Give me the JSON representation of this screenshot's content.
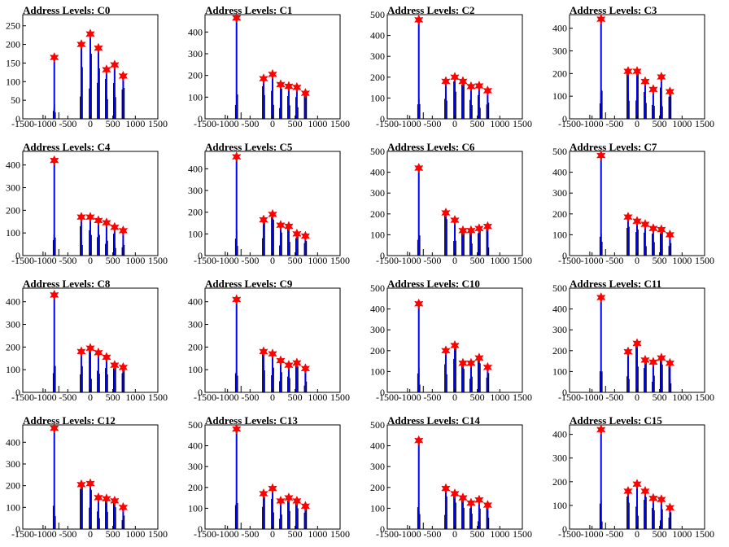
{
  "colors": {
    "frame": "#000000",
    "histogram_black": "#000000",
    "histogram_blue": "#0000ff",
    "marker": "#ff0000"
  },
  "marker_icon": "red-star-icon",
  "chart_data": [
    {
      "type": "bar",
      "title_prefix": "Address Levels:",
      "channel": "C0",
      "xlim": [
        -1500,
        1500
      ],
      "ylim": [
        0,
        280
      ],
      "xticks": [
        -1500,
        -1000,
        -500,
        0,
        500,
        1000,
        1500
      ],
      "yticks": [
        0,
        50,
        100,
        150,
        200,
        250
      ],
      "peaks_x": [
        -800,
        -200,
        0,
        180,
        360,
        540,
        730
      ],
      "peaks_y": [
        165,
        200,
        228,
        190,
        132,
        145,
        115
      ]
    },
    {
      "type": "bar",
      "title_prefix": "Address Levels:",
      "channel": "C1",
      "xlim": [
        -1500,
        1500
      ],
      "ylim": [
        0,
        480
      ],
      "xticks": [
        -1500,
        -1000,
        -500,
        0,
        500,
        1000,
        1500
      ],
      "yticks": [
        0,
        100,
        200,
        300,
        400
      ],
      "peaks_x": [
        -800,
        -200,
        0,
        180,
        360,
        540,
        730
      ],
      "peaks_y": [
        465,
        185,
        205,
        158,
        150,
        145,
        118
      ]
    },
    {
      "type": "bar",
      "title_prefix": "Address Levels:",
      "channel": "C2",
      "xlim": [
        -1500,
        1500
      ],
      "ylim": [
        0,
        500
      ],
      "xticks": [
        -1500,
        -1000,
        -500,
        0,
        500,
        1000,
        1500
      ],
      "yticks": [
        0,
        100,
        200,
        300,
        400,
        500
      ],
      "peaks_x": [
        -800,
        -200,
        0,
        180,
        360,
        540,
        730
      ],
      "peaks_y": [
        475,
        180,
        200,
        180,
        155,
        158,
        135
      ]
    },
    {
      "type": "bar",
      "title_prefix": "Address Levels:",
      "channel": "C3",
      "xlim": [
        -1500,
        1500
      ],
      "ylim": [
        0,
        460
      ],
      "xticks": [
        -1500,
        -1000,
        -500,
        0,
        500,
        1000,
        1500
      ],
      "yticks": [
        0,
        100,
        200,
        300,
        400
      ],
      "peaks_x": [
        -800,
        -200,
        0,
        180,
        360,
        540,
        730
      ],
      "peaks_y": [
        440,
        210,
        210,
        165,
        130,
        185,
        120
      ]
    },
    {
      "type": "bar",
      "title_prefix": "Address Levels:",
      "channel": "C4",
      "xlim": [
        -1500,
        1500
      ],
      "ylim": [
        0,
        460
      ],
      "xticks": [
        -1500,
        -1000,
        -500,
        0,
        500,
        1000,
        1500
      ],
      "yticks": [
        0,
        100,
        200,
        300,
        400
      ],
      "peaks_x": [
        -800,
        -200,
        0,
        180,
        360,
        540,
        730
      ],
      "peaks_y": [
        420,
        170,
        170,
        155,
        145,
        125,
        110
      ]
    },
    {
      "type": "bar",
      "title_prefix": "Address Levels:",
      "channel": "C5",
      "xlim": [
        -1500,
        1500
      ],
      "ylim": [
        0,
        480
      ],
      "xticks": [
        -1500,
        -1000,
        -500,
        0,
        500,
        1000,
        1500
      ],
      "yticks": [
        0,
        100,
        200,
        300,
        400
      ],
      "peaks_x": [
        -800,
        -200,
        0,
        180,
        360,
        540,
        730
      ],
      "peaks_y": [
        455,
        165,
        190,
        140,
        135,
        100,
        90
      ]
    },
    {
      "type": "bar",
      "title_prefix": "Address Levels:",
      "channel": "C6",
      "xlim": [
        -1500,
        1500
      ],
      "ylim": [
        0,
        500
      ],
      "xticks": [
        -1500,
        -1000,
        -500,
        0,
        500,
        1000,
        1500
      ],
      "yticks": [
        0,
        100,
        200,
        300,
        400,
        500
      ],
      "peaks_x": [
        -800,
        -200,
        0,
        180,
        360,
        540,
        730
      ],
      "peaks_y": [
        420,
        205,
        170,
        120,
        120,
        130,
        140
      ]
    },
    {
      "type": "bar",
      "title_prefix": "Address Levels:",
      "channel": "C7",
      "xlim": [
        -1500,
        1500
      ],
      "ylim": [
        0,
        500
      ],
      "xticks": [
        -1500,
        -1000,
        -500,
        0,
        500,
        1000,
        1500
      ],
      "yticks": [
        0,
        100,
        200,
        300,
        400,
        500
      ],
      "peaks_x": [
        -800,
        -200,
        0,
        180,
        360,
        540,
        730
      ],
      "peaks_y": [
        480,
        185,
        165,
        150,
        130,
        125,
        100
      ]
    },
    {
      "type": "bar",
      "title_prefix": "Address Levels:",
      "channel": "C8",
      "xlim": [
        -1500,
        1500
      ],
      "ylim": [
        0,
        460
      ],
      "xticks": [
        -1500,
        -1000,
        -500,
        0,
        500,
        1000,
        1500
      ],
      "yticks": [
        0,
        100,
        200,
        300,
        400
      ],
      "peaks_x": [
        -800,
        -200,
        0,
        180,
        360,
        540,
        730
      ],
      "peaks_y": [
        430,
        180,
        195,
        175,
        155,
        120,
        110
      ]
    },
    {
      "type": "bar",
      "title_prefix": "Address Levels:",
      "channel": "C9",
      "xlim": [
        -1500,
        1500
      ],
      "ylim": [
        0,
        460
      ],
      "xticks": [
        -1500,
        -1000,
        -500,
        0,
        500,
        1000,
        1500
      ],
      "yticks": [
        0,
        100,
        200,
        300,
        400
      ],
      "peaks_x": [
        -800,
        -200,
        0,
        180,
        360,
        540,
        730
      ],
      "peaks_y": [
        410,
        180,
        170,
        140,
        120,
        130,
        105
      ]
    },
    {
      "type": "bar",
      "title_prefix": "Address Levels:",
      "channel": "C10",
      "xlim": [
        -1500,
        1500
      ],
      "ylim": [
        0,
        500
      ],
      "xticks": [
        -1500,
        -1000,
        -500,
        0,
        500,
        1000,
        1500
      ],
      "yticks": [
        0,
        100,
        200,
        300,
        400,
        500
      ],
      "peaks_x": [
        -800,
        -200,
        0,
        180,
        360,
        540,
        730
      ],
      "peaks_y": [
        425,
        200,
        225,
        140,
        140,
        165,
        120
      ]
    },
    {
      "type": "bar",
      "title_prefix": "Address Levels:",
      "channel": "C11",
      "xlim": [
        -1500,
        1500
      ],
      "ylim": [
        0,
        500
      ],
      "xticks": [
        -1500,
        -1000,
        -500,
        0,
        500,
        1000,
        1500
      ],
      "yticks": [
        0,
        100,
        200,
        300,
        400,
        500
      ],
      "peaks_x": [
        -800,
        -200,
        0,
        180,
        360,
        540,
        730
      ],
      "peaks_y": [
        455,
        195,
        235,
        155,
        145,
        165,
        140
      ]
    },
    {
      "type": "bar",
      "title_prefix": "Address Levels:",
      "channel": "C12",
      "xlim": [
        -1500,
        1500
      ],
      "ylim": [
        0,
        480
      ],
      "xticks": [
        -1500,
        -1000,
        -500,
        0,
        500,
        1000,
        1500
      ],
      "yticks": [
        0,
        100,
        200,
        300,
        400
      ],
      "peaks_x": [
        -800,
        -200,
        0,
        180,
        360,
        540,
        730
      ],
      "peaks_y": [
        465,
        205,
        210,
        145,
        140,
        130,
        100
      ]
    },
    {
      "type": "bar",
      "title_prefix": "Address Levels:",
      "channel": "C13",
      "xlim": [
        -1500,
        1500
      ],
      "ylim": [
        0,
        500
      ],
      "xticks": [
        -1500,
        -1000,
        -500,
        0,
        500,
        1000,
        1500
      ],
      "yticks": [
        0,
        100,
        200,
        300,
        400,
        500
      ],
      "peaks_x": [
        -800,
        -200,
        0,
        180,
        360,
        540,
        730
      ],
      "peaks_y": [
        480,
        170,
        195,
        135,
        150,
        135,
        110
      ]
    },
    {
      "type": "bar",
      "title_prefix": "Address Levels:",
      "channel": "C14",
      "xlim": [
        -1500,
        1500
      ],
      "ylim": [
        0,
        500
      ],
      "xticks": [
        -1500,
        -1000,
        -500,
        0,
        500,
        1000,
        1500
      ],
      "yticks": [
        0,
        100,
        200,
        300,
        400,
        500
      ],
      "peaks_x": [
        -800,
        -200,
        0,
        180,
        360,
        540,
        730
      ],
      "peaks_y": [
        425,
        195,
        170,
        150,
        125,
        140,
        115
      ]
    },
    {
      "type": "bar",
      "title_prefix": "Address Levels:",
      "channel": "C15",
      "xlim": [
        -1500,
        1500
      ],
      "ylim": [
        0,
        440
      ],
      "xticks": [
        -1500,
        -1000,
        -500,
        0,
        500,
        1000,
        1500
      ],
      "yticks": [
        0,
        100,
        200,
        300,
        400
      ],
      "peaks_x": [
        -800,
        -200,
        0,
        180,
        360,
        540,
        730
      ],
      "peaks_y": [
        420,
        160,
        190,
        160,
        130,
        125,
        90
      ]
    }
  ]
}
